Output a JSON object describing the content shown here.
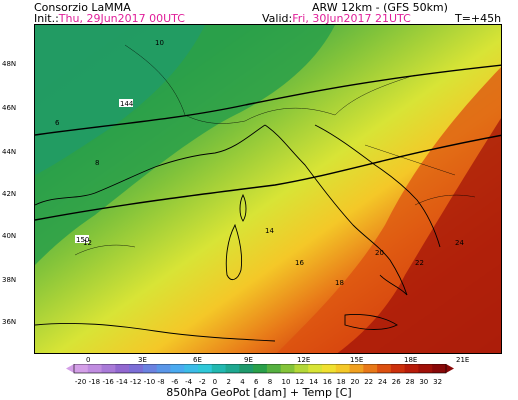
{
  "header": {
    "org": "Consorzio LaMMA",
    "model": "ARW 12km - (GFS 50km)",
    "init_label": "Init.:",
    "init_value": "Thu, 29Jun2017 00UTC",
    "valid_label": "Valid:",
    "valid_value": "Fri, 30Jun2017 21UTC",
    "lead": "T=+45h"
  },
  "map": {
    "lat_labels": [
      "48N",
      "46N",
      "44N",
      "42N",
      "40N",
      "38N",
      "36N"
    ],
    "lon_labels": [
      "0",
      "3E",
      "6E",
      "9E",
      "12E",
      "15E",
      "18E",
      "21E"
    ],
    "geopotential_labels": [
      "144",
      "150",
      "10",
      "12",
      "14",
      "16",
      "18",
      "20",
      "22",
      "24",
      "6",
      "8"
    ],
    "field": "850hPa GeoPot [dam] + Temp [C]"
  },
  "colorbar": {
    "ticks": [
      "-20",
      "-18",
      "-16",
      "-14",
      "-12",
      "-10",
      "-8",
      "-6",
      "-4",
      "-2",
      "0",
      "2",
      "4",
      "6",
      "8",
      "10",
      "12",
      "14",
      "16",
      "18",
      "20",
      "22",
      "24",
      "26",
      "28",
      "30",
      "32"
    ],
    "colors": [
      "#d49fe8",
      "#c08ce0",
      "#a97ad8",
      "#9268d0",
      "#7c6ed6",
      "#6b82e0",
      "#5a96e8",
      "#4aaaf0",
      "#3cbce8",
      "#30c8d8",
      "#22b8b0",
      "#1ea890",
      "#1f9a6c",
      "#2aa04a",
      "#55b040",
      "#84c43a",
      "#b4d838",
      "#d8e436",
      "#f0e030",
      "#f4c828",
      "#f0a020",
      "#e87818",
      "#dc5010",
      "#cc300c",
      "#b81c0a",
      "#a01008",
      "#880808"
    ]
  },
  "footer": {
    "label": "850hPa GeoPot [dam] + Temp [C]"
  }
}
